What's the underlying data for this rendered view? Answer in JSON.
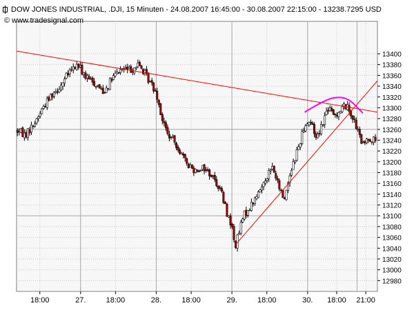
{
  "header": {
    "title": "DOW JONES INDUSTRIAL, .DJI, 15 Minuten - 24.08.2007 16:45:00 - 30.08.2007 22:15:00 - 13238.7295 USD",
    "watermark": "© www.tradesignal.com"
  },
  "colors": {
    "background": "#f7f7f7",
    "grid": "#c8c8c8",
    "candle_up": "#ffffff",
    "candle_down": "#b00000",
    "candle_outline": "#000000",
    "trendline": "#ff0000",
    "arc": "#ff00ff"
  },
  "chart_data": {
    "type": "candlestick",
    "title": "DOW JONES INDUSTRIAL, .DJI, 15 Minuten - 24.08.2007 16:45:00 - 30.08.2007 22:15:00 - 13238.7295 USD",
    "ylim": [
      12960,
      13460
    ],
    "yticks": [
      12980,
      13000,
      13020,
      13040,
      13060,
      13080,
      13100,
      13120,
      13140,
      13160,
      13180,
      13200,
      13220,
      13240,
      13260,
      13280,
      13300,
      13320,
      13340,
      13360,
      13380,
      13400
    ],
    "xlim": [
      0,
      124
    ],
    "xticks": [
      {
        "x": 8,
        "label": "18:00"
      },
      {
        "x": 22,
        "label": "27."
      },
      {
        "x": 34,
        "label": "18:00"
      },
      {
        "x": 48,
        "label": "28."
      },
      {
        "x": 60,
        "label": "18:00"
      },
      {
        "x": 74,
        "label": "29."
      },
      {
        "x": 86,
        "label": "18:00"
      },
      {
        "x": 100,
        "label": "30."
      },
      {
        "x": 110,
        "label": "18:00"
      },
      {
        "x": 120,
        "label": "21:00"
      }
    ],
    "major_grid_x": [
      22,
      48,
      74,
      100,
      117
    ],
    "major_grid_y": [
      13100,
      13260
    ],
    "grid": true,
    "close_points": [
      [
        0,
        13258
      ],
      [
        3,
        13250
      ],
      [
        6,
        13270
      ],
      [
        9,
        13300
      ],
      [
        12,
        13325
      ],
      [
        15,
        13340
      ],
      [
        18,
        13365
      ],
      [
        21,
        13380
      ],
      [
        24,
        13355
      ],
      [
        27,
        13345
      ],
      [
        30,
        13330
      ],
      [
        33,
        13355
      ],
      [
        36,
        13372
      ],
      [
        39,
        13370
      ],
      [
        42,
        13380
      ],
      [
        45,
        13355
      ],
      [
        48,
        13330
      ],
      [
        50,
        13280
      ],
      [
        52,
        13250
      ],
      [
        55,
        13232
      ],
      [
        58,
        13200
      ],
      [
        61,
        13185
      ],
      [
        64,
        13190
      ],
      [
        67,
        13175
      ],
      [
        70,
        13150
      ],
      [
        72,
        13110
      ],
      [
        74,
        13080
      ],
      [
        75,
        13042
      ],
      [
        76,
        13060
      ],
      [
        78,
        13100
      ],
      [
        80,
        13115
      ],
      [
        83,
        13140
      ],
      [
        86,
        13175
      ],
      [
        88,
        13190
      ],
      [
        90,
        13155
      ],
      [
        92,
        13130
      ],
      [
        94,
        13180
      ],
      [
        97,
        13230
      ],
      [
        99,
        13270
      ],
      [
        101,
        13275
      ],
      [
        103,
        13245
      ],
      [
        105,
        13270
      ],
      [
        107,
        13300
      ],
      [
        109,
        13285
      ],
      [
        111,
        13295
      ],
      [
        113,
        13305
      ],
      [
        115,
        13290
      ],
      [
        117,
        13260
      ],
      [
        119,
        13230
      ],
      [
        121,
        13245
      ],
      [
        123,
        13239
      ]
    ],
    "trendlines": [
      {
        "from": [
          0,
          13405
        ],
        "to": [
          124,
          13292
        ],
        "color": "#ff0000"
      },
      {
        "from": [
          75,
          13045
        ],
        "to": [
          124,
          13350
        ],
        "color": "#ff0000"
      }
    ],
    "arc": {
      "points": [
        [
          99,
          13292
        ],
        [
          104,
          13308
        ],
        [
          109,
          13320
        ],
        [
          114,
          13318
        ],
        [
          119,
          13290
        ]
      ],
      "color": "#ff00ff"
    }
  }
}
